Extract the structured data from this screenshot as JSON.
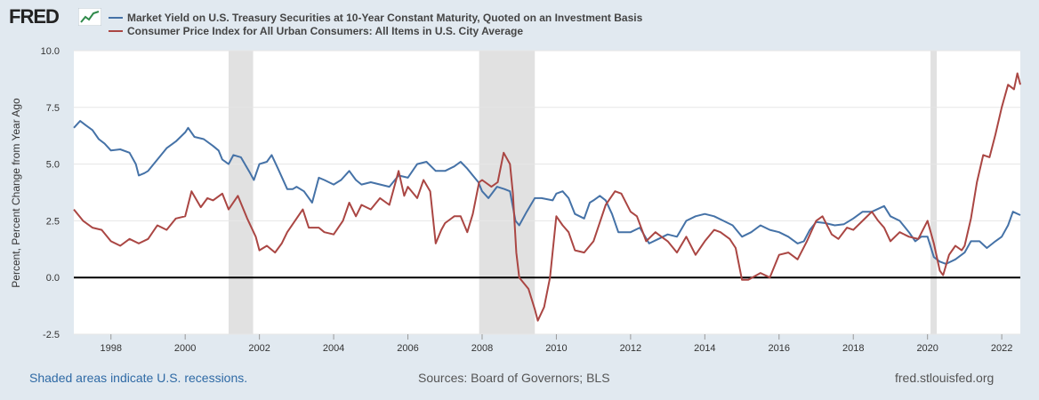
{
  "header": {
    "brand": "FRED",
    "brand_icon": "line-chart-icon"
  },
  "legend": {
    "items": [
      {
        "label": "Market Yield on U.S. Treasury Securities at 10-Year Constant Maturity, Quoted on an Investment Basis",
        "color": "#4572a7"
      },
      {
        "label": "Consumer Price Index for All Urban Consumers: All Items in U.S. City Average",
        "color": "#aa4643"
      }
    ]
  },
  "footer": {
    "recession_note": "Shaded areas indicate U.S. recessions.",
    "sources": "Sources: Board of Governors; BLS",
    "site": "fred.stlouisfed.org"
  },
  "chart_data": {
    "type": "line",
    "title": "",
    "xlabel": "",
    "ylabel": "Percent, Percent Change from Year Ago",
    "xlim": [
      1997.0,
      2022.5
    ],
    "ylim": [
      -2.5,
      10.0
    ],
    "yticks": [
      10.0,
      7.5,
      5.0,
      2.5,
      0.0,
      -2.5
    ],
    "ytick_labels": [
      "10.0",
      "7.5",
      "5.0",
      "2.5",
      "0.0",
      "-2.5"
    ],
    "xticks": [
      1998,
      2000,
      2002,
      2004,
      2006,
      2008,
      2010,
      2012,
      2014,
      2016,
      2018,
      2020,
      2022
    ],
    "xtick_labels": [
      "1998",
      "2000",
      "2002",
      "2004",
      "2006",
      "2008",
      "2010",
      "2012",
      "2014",
      "2016",
      "2018",
      "2020",
      "2022"
    ],
    "recessions": [
      [
        2001.17,
        2001.83
      ],
      [
        2007.92,
        2009.42
      ],
      [
        2020.08,
        2020.25
      ]
    ],
    "zero_line": 0.0,
    "series": [
      {
        "name": "Market Yield on U.S. Treasury Securities at 10-Year Constant Maturity, Quoted on an Investment Basis",
        "color": "#4572a7",
        "points": [
          [
            1997.0,
            6.6
          ],
          [
            1997.17,
            6.9
          ],
          [
            1997.33,
            6.7
          ],
          [
            1997.5,
            6.5
          ],
          [
            1997.67,
            6.1
          ],
          [
            1997.83,
            5.9
          ],
          [
            1998.0,
            5.6
          ],
          [
            1998.25,
            5.65
          ],
          [
            1998.5,
            5.5
          ],
          [
            1998.67,
            5.0
          ],
          [
            1998.75,
            4.5
          ],
          [
            1998.9,
            4.6
          ],
          [
            1999.0,
            4.7
          ],
          [
            1999.25,
            5.2
          ],
          [
            1999.5,
            5.7
          ],
          [
            1999.75,
            6.0
          ],
          [
            2000.0,
            6.4
          ],
          [
            2000.08,
            6.6
          ],
          [
            2000.25,
            6.2
          ],
          [
            2000.5,
            6.1
          ],
          [
            2000.75,
            5.8
          ],
          [
            2000.9,
            5.6
          ],
          [
            2001.0,
            5.2
          ],
          [
            2001.17,
            5.0
          ],
          [
            2001.3,
            5.4
          ],
          [
            2001.5,
            5.3
          ],
          [
            2001.75,
            4.6
          ],
          [
            2001.85,
            4.3
          ],
          [
            2002.0,
            5.0
          ],
          [
            2002.2,
            5.1
          ],
          [
            2002.33,
            5.4
          ],
          [
            2002.5,
            4.8
          ],
          [
            2002.75,
            3.9
          ],
          [
            2002.9,
            3.9
          ],
          [
            2003.0,
            4.0
          ],
          [
            2003.2,
            3.8
          ],
          [
            2003.42,
            3.3
          ],
          [
            2003.6,
            4.4
          ],
          [
            2003.75,
            4.3
          ],
          [
            2004.0,
            4.1
          ],
          [
            2004.2,
            4.3
          ],
          [
            2004.42,
            4.7
          ],
          [
            2004.6,
            4.3
          ],
          [
            2004.75,
            4.1
          ],
          [
            2005.0,
            4.2
          ],
          [
            2005.5,
            4.0
          ],
          [
            2005.75,
            4.5
          ],
          [
            2006.0,
            4.4
          ],
          [
            2006.25,
            5.0
          ],
          [
            2006.5,
            5.1
          ],
          [
            2006.75,
            4.7
          ],
          [
            2007.0,
            4.7
          ],
          [
            2007.25,
            4.9
          ],
          [
            2007.42,
            5.1
          ],
          [
            2007.6,
            4.8
          ],
          [
            2007.75,
            4.5
          ],
          [
            2007.9,
            4.2
          ],
          [
            2008.0,
            3.8
          ],
          [
            2008.17,
            3.5
          ],
          [
            2008.4,
            4.0
          ],
          [
            2008.6,
            3.9
          ],
          [
            2008.75,
            3.8
          ],
          [
            2008.9,
            2.5
          ],
          [
            2009.0,
            2.3
          ],
          [
            2009.2,
            2.9
          ],
          [
            2009.42,
            3.5
          ],
          [
            2009.6,
            3.5
          ],
          [
            2009.9,
            3.4
          ],
          [
            2010.0,
            3.7
          ],
          [
            2010.17,
            3.8
          ],
          [
            2010.33,
            3.5
          ],
          [
            2010.5,
            2.8
          ],
          [
            2010.75,
            2.6
          ],
          [
            2010.9,
            3.3
          ],
          [
            2011.0,
            3.4
          ],
          [
            2011.17,
            3.6
          ],
          [
            2011.33,
            3.4
          ],
          [
            2011.5,
            2.8
          ],
          [
            2011.67,
            2.0
          ],
          [
            2011.9,
            2.0
          ],
          [
            2012.0,
            2.0
          ],
          [
            2012.25,
            2.2
          ],
          [
            2012.5,
            1.5
          ],
          [
            2012.75,
            1.7
          ],
          [
            2013.0,
            1.9
          ],
          [
            2013.25,
            1.8
          ],
          [
            2013.5,
            2.5
          ],
          [
            2013.75,
            2.7
          ],
          [
            2014.0,
            2.8
          ],
          [
            2014.25,
            2.7
          ],
          [
            2014.5,
            2.5
          ],
          [
            2014.75,
            2.3
          ],
          [
            2015.0,
            1.8
          ],
          [
            2015.25,
            2.0
          ],
          [
            2015.5,
            2.3
          ],
          [
            2015.75,
            2.1
          ],
          [
            2016.0,
            2.0
          ],
          [
            2016.25,
            1.8
          ],
          [
            2016.5,
            1.5
          ],
          [
            2016.67,
            1.6
          ],
          [
            2016.83,
            2.1
          ],
          [
            2017.0,
            2.45
          ],
          [
            2017.25,
            2.4
          ],
          [
            2017.5,
            2.3
          ],
          [
            2017.75,
            2.35
          ],
          [
            2018.0,
            2.6
          ],
          [
            2018.25,
            2.9
          ],
          [
            2018.5,
            2.9
          ],
          [
            2018.83,
            3.15
          ],
          [
            2019.0,
            2.7
          ],
          [
            2019.25,
            2.5
          ],
          [
            2019.5,
            2.0
          ],
          [
            2019.67,
            1.6
          ],
          [
            2019.83,
            1.8
          ],
          [
            2020.0,
            1.8
          ],
          [
            2020.17,
            0.9
          ],
          [
            2020.33,
            0.7
          ],
          [
            2020.5,
            0.6
          ],
          [
            2020.75,
            0.8
          ],
          [
            2021.0,
            1.1
          ],
          [
            2021.17,
            1.6
          ],
          [
            2021.4,
            1.6
          ],
          [
            2021.6,
            1.3
          ],
          [
            2021.83,
            1.6
          ],
          [
            2022.0,
            1.8
          ],
          [
            2022.17,
            2.3
          ],
          [
            2022.3,
            2.9
          ],
          [
            2022.5,
            2.75
          ]
        ]
      },
      {
        "name": "Consumer Price Index for All Urban Consumers: All Items in U.S. City Average",
        "color": "#aa4643",
        "points": [
          [
            1997.0,
            3.0
          ],
          [
            1997.25,
            2.5
          ],
          [
            1997.5,
            2.2
          ],
          [
            1997.75,
            2.1
          ],
          [
            1998.0,
            1.6
          ],
          [
            1998.25,
            1.4
          ],
          [
            1998.5,
            1.7
          ],
          [
            1998.75,
            1.5
          ],
          [
            1999.0,
            1.7
          ],
          [
            1999.25,
            2.3
          ],
          [
            1999.5,
            2.1
          ],
          [
            1999.75,
            2.6
          ],
          [
            2000.0,
            2.7
          ],
          [
            2000.17,
            3.8
          ],
          [
            2000.42,
            3.1
          ],
          [
            2000.6,
            3.5
          ],
          [
            2000.75,
            3.4
          ],
          [
            2001.0,
            3.7
          ],
          [
            2001.17,
            3.0
          ],
          [
            2001.42,
            3.6
          ],
          [
            2001.67,
            2.6
          ],
          [
            2001.9,
            1.8
          ],
          [
            2002.0,
            1.2
          ],
          [
            2002.2,
            1.4
          ],
          [
            2002.42,
            1.1
          ],
          [
            2002.6,
            1.5
          ],
          [
            2002.75,
            2.0
          ],
          [
            2003.0,
            2.6
          ],
          [
            2003.17,
            3.0
          ],
          [
            2003.33,
            2.2
          ],
          [
            2003.6,
            2.2
          ],
          [
            2003.75,
            2.0
          ],
          [
            2004.0,
            1.9
          ],
          [
            2004.25,
            2.5
          ],
          [
            2004.42,
            3.3
          ],
          [
            2004.6,
            2.7
          ],
          [
            2004.75,
            3.2
          ],
          [
            2005.0,
            3.0
          ],
          [
            2005.25,
            3.5
          ],
          [
            2005.5,
            3.2
          ],
          [
            2005.75,
            4.7
          ],
          [
            2005.9,
            3.6
          ],
          [
            2006.0,
            4.0
          ],
          [
            2006.25,
            3.5
          ],
          [
            2006.42,
            4.3
          ],
          [
            2006.6,
            3.8
          ],
          [
            2006.75,
            1.5
          ],
          [
            2006.9,
            2.1
          ],
          [
            2007.0,
            2.4
          ],
          [
            2007.25,
            2.7
          ],
          [
            2007.42,
            2.7
          ],
          [
            2007.6,
            2.0
          ],
          [
            2007.75,
            2.8
          ],
          [
            2007.92,
            4.2
          ],
          [
            2008.0,
            4.3
          ],
          [
            2008.25,
            4.0
          ],
          [
            2008.42,
            4.2
          ],
          [
            2008.58,
            5.5
          ],
          [
            2008.75,
            5.0
          ],
          [
            2008.83,
            3.7
          ],
          [
            2008.92,
            1.1
          ],
          [
            2009.0,
            0.0
          ],
          [
            2009.25,
            -0.5
          ],
          [
            2009.42,
            -1.4
          ],
          [
            2009.5,
            -1.9
          ],
          [
            2009.67,
            -1.3
          ],
          [
            2009.83,
            0.0
          ],
          [
            2010.0,
            2.7
          ],
          [
            2010.17,
            2.3
          ],
          [
            2010.33,
            2.0
          ],
          [
            2010.5,
            1.2
          ],
          [
            2010.75,
            1.1
          ],
          [
            2011.0,
            1.6
          ],
          [
            2011.33,
            3.2
          ],
          [
            2011.58,
            3.8
          ],
          [
            2011.75,
            3.7
          ],
          [
            2012.0,
            2.9
          ],
          [
            2012.17,
            2.7
          ],
          [
            2012.42,
            1.6
          ],
          [
            2012.67,
            2.0
          ],
          [
            2012.83,
            1.8
          ],
          [
            2013.0,
            1.6
          ],
          [
            2013.25,
            1.1
          ],
          [
            2013.5,
            1.8
          ],
          [
            2013.75,
            1.0
          ],
          [
            2014.0,
            1.6
          ],
          [
            2014.25,
            2.1
          ],
          [
            2014.42,
            2.0
          ],
          [
            2014.67,
            1.7
          ],
          [
            2014.83,
            1.3
          ],
          [
            2015.0,
            -0.1
          ],
          [
            2015.17,
            -0.1
          ],
          [
            2015.5,
            0.2
          ],
          [
            2015.75,
            0.0
          ],
          [
            2016.0,
            1.0
          ],
          [
            2016.25,
            1.1
          ],
          [
            2016.5,
            0.8
          ],
          [
            2016.75,
            1.6
          ],
          [
            2017.0,
            2.5
          ],
          [
            2017.17,
            2.7
          ],
          [
            2017.42,
            1.9
          ],
          [
            2017.6,
            1.7
          ],
          [
            2017.83,
            2.2
          ],
          [
            2018.0,
            2.1
          ],
          [
            2018.25,
            2.5
          ],
          [
            2018.5,
            2.9
          ],
          [
            2018.67,
            2.5
          ],
          [
            2018.83,
            2.2
          ],
          [
            2019.0,
            1.6
          ],
          [
            2019.25,
            2.0
          ],
          [
            2019.5,
            1.8
          ],
          [
            2019.75,
            1.7
          ],
          [
            2020.0,
            2.5
          ],
          [
            2020.17,
            1.5
          ],
          [
            2020.33,
            0.3
          ],
          [
            2020.42,
            0.1
          ],
          [
            2020.58,
            1.0
          ],
          [
            2020.75,
            1.4
          ],
          [
            2020.92,
            1.2
          ],
          [
            2021.0,
            1.4
          ],
          [
            2021.17,
            2.6
          ],
          [
            2021.33,
            4.2
          ],
          [
            2021.5,
            5.4
          ],
          [
            2021.67,
            5.3
          ],
          [
            2021.83,
            6.3
          ],
          [
            2022.0,
            7.5
          ],
          [
            2022.17,
            8.5
          ],
          [
            2022.33,
            8.3
          ],
          [
            2022.42,
            9.0
          ],
          [
            2022.5,
            8.5
          ]
        ]
      }
    ]
  }
}
